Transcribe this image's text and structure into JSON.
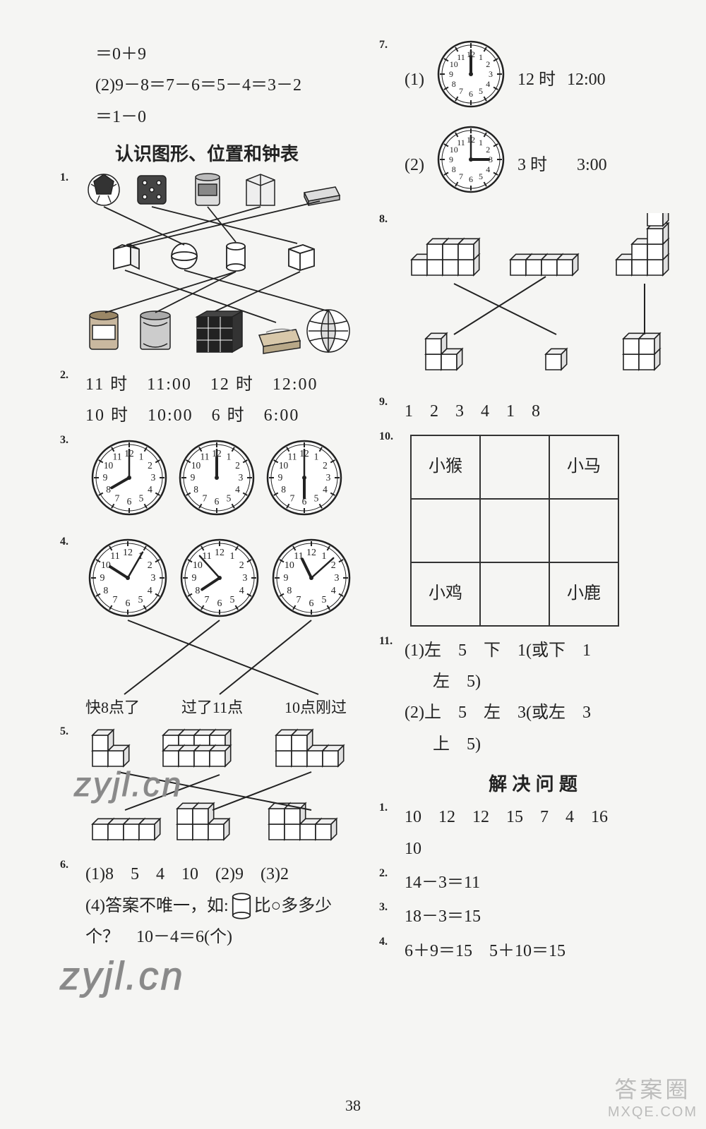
{
  "left": {
    "eq1": "＝0＋9",
    "eq2": "(2)9－8＝7－6＝5－4＝3－2",
    "eq3": "＝1－0",
    "heading": "认识图形、位置和钟表",
    "q1_num": "1.",
    "q2_num": "2.",
    "q2_l1": "11 时　11:00　12 时　12:00",
    "q2_l2": "10 时　10:00　6 时　6:00",
    "q3_num": "3.",
    "q3_clocks": [
      {
        "h": 8,
        "m": 0
      },
      {
        "h": 12,
        "m": 0
      },
      {
        "h": 6,
        "m": 0
      }
    ],
    "q4_num": "4.",
    "q4_clocks": [
      {
        "h": 10,
        "m": 5
      },
      {
        "h": 7,
        "m": 53
      },
      {
        "h": 11,
        "m": 8
      }
    ],
    "q4_labels": [
      "快8点了",
      "过了11点",
      "10点刚过"
    ],
    "q5_num": "5.",
    "q6_num": "6.",
    "q6_l1": "(1)8　5　4　10　(2)9　(3)2",
    "q6_l2_a": "(4)答案不唯一，如:",
    "q6_l2_b": "比○多多少",
    "q6_l3": "个？　10－4＝6(个)"
  },
  "right": {
    "q7_num": "7.",
    "q7_r1_pre": "(1)",
    "q7_r1_clock": {
      "h": 12,
      "m": 0
    },
    "q7_r1_t1": "12 时",
    "q7_r1_t2": "12:00",
    "q7_r2_pre": "(2)",
    "q7_r2_clock": {
      "h": 3,
      "m": 0
    },
    "q7_r2_t1": "3 时",
    "q7_r2_t2": "3:00",
    "q8_num": "8.",
    "q9_num": "9.",
    "q9_vals": "1　2　3　4　1　8",
    "q10_num": "10.",
    "q10_grid": [
      [
        "小猴",
        "",
        "小马"
      ],
      [
        "",
        "",
        ""
      ],
      [
        "小鸡",
        "",
        "小鹿"
      ]
    ],
    "q11_num": "11.",
    "q11_l1": "(1)左　5　下　1(或下　1",
    "q11_l2": "左　5)",
    "q11_l3": "(2)上　5　左　3(或左　3",
    "q11_l4": "上　5)",
    "heading2": "解 决 问 题",
    "p1_num": "1.",
    "p1_l1": "10　12　12　15　7　4　16",
    "p1_l2": "10",
    "p2_num": "2.",
    "p2": "14－3＝11",
    "p3_num": "3.",
    "p3": "18－3＝15",
    "p4_num": "4.",
    "p4": "6＋9＝15　5＋10＝15"
  },
  "page_number": "38",
  "watermark_text": "zyjl.cn",
  "corner_wm_1": "答案圈",
  "corner_wm_2": "MXQE.COM"
}
